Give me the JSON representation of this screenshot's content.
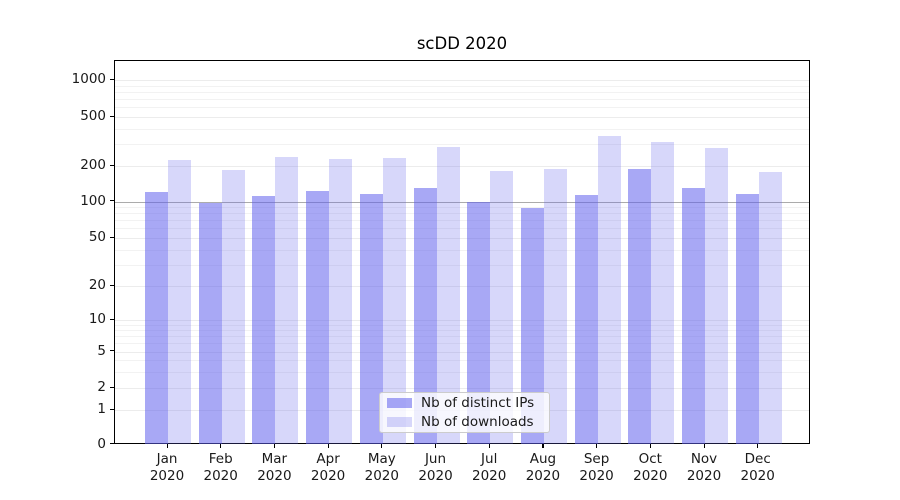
{
  "figure": {
    "title": "scDD 2020"
  },
  "chart_data": {
    "type": "bar",
    "title": "scDD 2020",
    "categories": [
      "Jan",
      "Feb",
      "Mar",
      "Apr",
      "May",
      "Jun",
      "Jul",
      "Aug",
      "Sep",
      "Oct",
      "Nov",
      "Dec"
    ],
    "category_year": "2020",
    "series": [
      {
        "name": "Nb of distinct IPs",
        "values": [
          120,
          98,
          111,
          122,
          115,
          131,
          100,
          88,
          114,
          187,
          131,
          116
        ],
        "color": "rgba(94,94,237,0.54)"
      },
      {
        "name": "Nb of downloads",
        "values": [
          225,
          184,
          235,
          228,
          232,
          288,
          181,
          187,
          348,
          315,
          280,
          177
        ],
        "color": "rgba(94,94,237,0.25)"
      }
    ],
    "y_ticks": [
      0,
      1,
      2,
      5,
      10,
      20,
      50,
      100,
      200,
      500,
      1000
    ],
    "y_scale": "log-like (compressed near zero)",
    "ylim": [
      0,
      1400
    ],
    "grid": "on",
    "emphasized_gridline": 100,
    "legend_position": "lower center",
    "xlabel": "",
    "ylabel": ""
  }
}
